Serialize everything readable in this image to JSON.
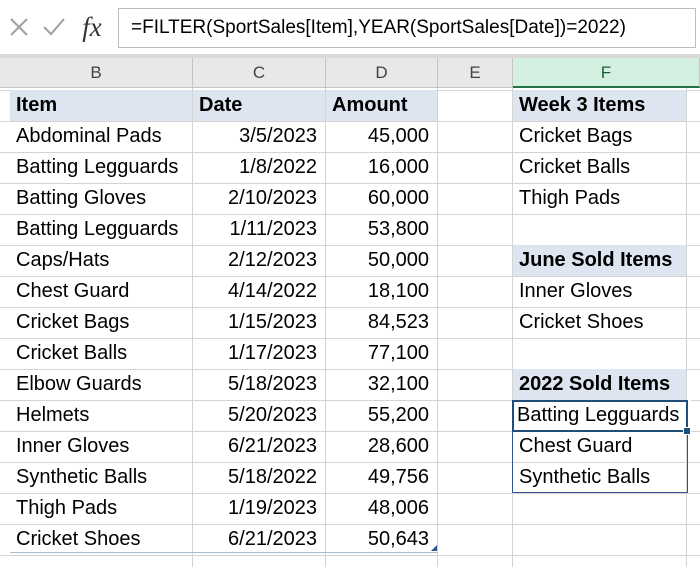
{
  "formula_bar": {
    "cancel_icon": "cancel-x-icon",
    "enter_icon": "enter-check-icon",
    "function_label": "fx",
    "formula": "=FILTER(SportSales[Item],YEAR(SportSales[Date])=2022)"
  },
  "columns": [
    "B",
    "C",
    "D",
    "E",
    "F"
  ],
  "selected_column": "F",
  "table": {
    "headers": {
      "item": "Item",
      "date": "Date",
      "amount": "Amount"
    },
    "rows": [
      {
        "item": "Abdominal Pads",
        "date": "3/5/2023",
        "amount": "45,000"
      },
      {
        "item": "Batting Legguards",
        "date": "1/8/2022",
        "amount": "16,000"
      },
      {
        "item": "Batting Gloves",
        "date": "2/10/2023",
        "amount": "60,000"
      },
      {
        "item": "Batting Legguards",
        "date": "1/11/2023",
        "amount": "53,800"
      },
      {
        "item": "Caps/Hats",
        "date": "2/12/2023",
        "amount": "50,000"
      },
      {
        "item": "Chest Guard",
        "date": "4/14/2022",
        "amount": "18,100"
      },
      {
        "item": "Cricket Bags",
        "date": "1/15/2023",
        "amount": "84,523"
      },
      {
        "item": "Cricket Balls",
        "date": "1/17/2023",
        "amount": "77,100"
      },
      {
        "item": "Elbow Guards",
        "date": "5/18/2023",
        "amount": "32,100"
      },
      {
        "item": "Helmets",
        "date": "5/20/2023",
        "amount": "55,200"
      },
      {
        "item": "Inner Gloves",
        "date": "6/21/2023",
        "amount": "28,600"
      },
      {
        "item": "Synthetic Balls",
        "date": "5/18/2022",
        "amount": "49,756"
      },
      {
        "item": "Thigh Pads",
        "date": "1/19/2023",
        "amount": "48,006"
      },
      {
        "item": "Cricket Shoes",
        "date": "6/21/2023",
        "amount": "50,643"
      }
    ]
  },
  "side_lists": {
    "week3": {
      "title": "Week 3 Items",
      "items": [
        "Cricket Bags",
        "Cricket Balls",
        "Thigh Pads"
      ]
    },
    "june": {
      "title": "June Sold Items",
      "items": [
        "Inner Gloves",
        "Cricket Shoes"
      ]
    },
    "sold2022": {
      "title": "2022 Sold Items",
      "items": [
        "Batting Legguards",
        "Chest Guard",
        "Synthetic Balls"
      ]
    }
  },
  "colors": {
    "header_fill": "#dde5f0",
    "selected_column_header": "#d3f0e0",
    "accent": "#217346",
    "spill_border": "#2f5496"
  }
}
